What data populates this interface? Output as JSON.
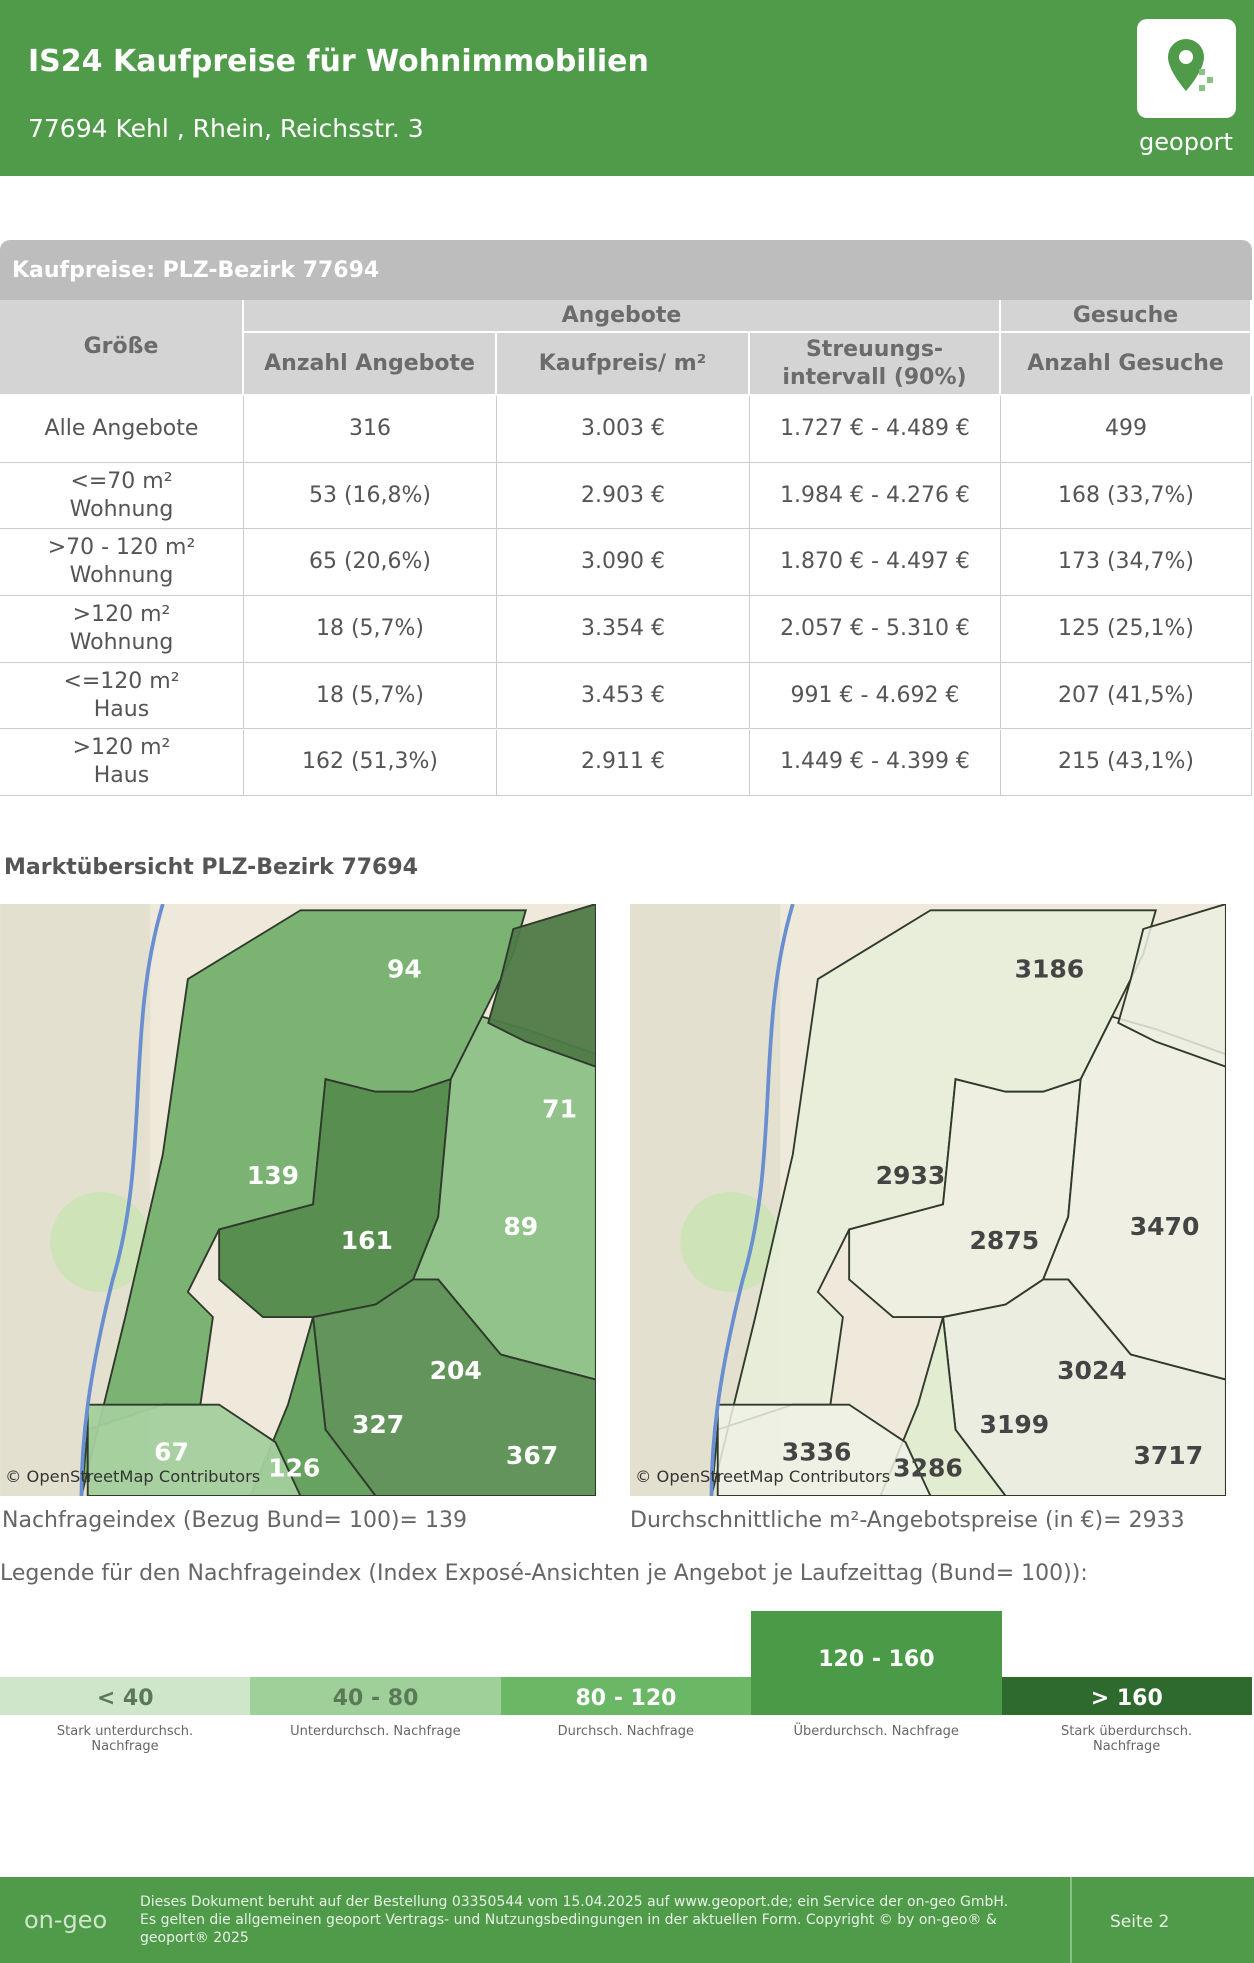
{
  "header": {
    "title": "IS24 Kaufpreise für Wohnimmobilien",
    "address": "77694 Kehl , Rhein, Reichsstr. 3",
    "logo": "geoport"
  },
  "table": {
    "title": "Kaufpreise: PLZ-Bezirk 77694",
    "group_headers": [
      "Angebote",
      "Gesuche"
    ],
    "columns": [
      "Größe",
      "Anzahl Angebote",
      "Kaufpreis/ m²",
      "Streuungs-\nintervall (90%)",
      "Anzahl Gesuche"
    ],
    "rows": [
      [
        "Alle Angebote",
        "316",
        "3.003 €",
        "1.727 € - 4.489 €",
        "499"
      ],
      [
        "<=70 m²\nWohnung",
        "53 (16,8%)",
        "2.903 €",
        "1.984 € - 4.276 €",
        "168 (33,7%)"
      ],
      [
        ">70 - 120 m²\nWohnung",
        "65 (20,6%)",
        "3.090 €",
        "1.870 € - 4.497 €",
        "173 (34,7%)"
      ],
      [
        ">120 m²\nWohnung",
        "18 (5,7%)",
        "3.354 €",
        "2.057 € - 5.310 €",
        "125 (25,1%)"
      ],
      [
        "<=120 m²\nHaus",
        "18 (5,7%)",
        "3.453 €",
        "991 € - 4.692 €",
        "207 (41,5%)"
      ],
      [
        ">120 m²\nHaus",
        "162 (51,3%)",
        "2.911 €",
        "1.449 € - 4.399 €",
        "215 (43,1%)"
      ]
    ]
  },
  "market": {
    "title": "Marktübersicht PLZ-Bezirk 77694",
    "maps": [
      {
        "labels": [
          "94",
          "71",
          "139",
          "161",
          "89",
          "204",
          "327",
          "67",
          "126",
          "367"
        ],
        "attribution": "© OpenStreetMap Contributors",
        "caption": "Nachfrageindex (Bezug Bund= 100)= 139"
      },
      {
        "labels": [
          "3186",
          "2933",
          "2875",
          "3470",
          "3024",
          "3199",
          "3336",
          "3286",
          "3717"
        ],
        "attribution": "© OpenStreetMap Contributors",
        "caption": "Durchschnittliche m²-Angebotspreise (in €)= 2933"
      }
    ]
  },
  "legend": {
    "title": "Legende für den Nachfrageindex (Index Exposé-Ansichten je Angebot je Laufzeittag (Bund= 100)):",
    "items": [
      {
        "range": "< 40",
        "description": "Stark unterdurchsch. Nachfrage"
      },
      {
        "range": "40 - 80",
        "description": "Unterdurchsch. Nachfrage"
      },
      {
        "range": "80 - 120",
        "description": "Durchsch. Nachfrage"
      },
      {
        "range": "120 - 160",
        "description": "Überdurchsch. Nachfrage"
      },
      {
        "range": "> 160",
        "description": "Stark überdurchsch. Nachfrage"
      }
    ]
  },
  "footer": {
    "logo": "on-geo",
    "text": "Dieses Dokument beruht auf der Bestellung 03350544 vom 15.04.2025 auf www.geoport.de; ein Service der on-geo GmbH. Es gelten die allgemeinen geoport Vertrags- und Nutzungsbedingungen in der aktuellen Form. Copyright © by on-geo® & geoport® 2025",
    "page": "Seite 2"
  }
}
